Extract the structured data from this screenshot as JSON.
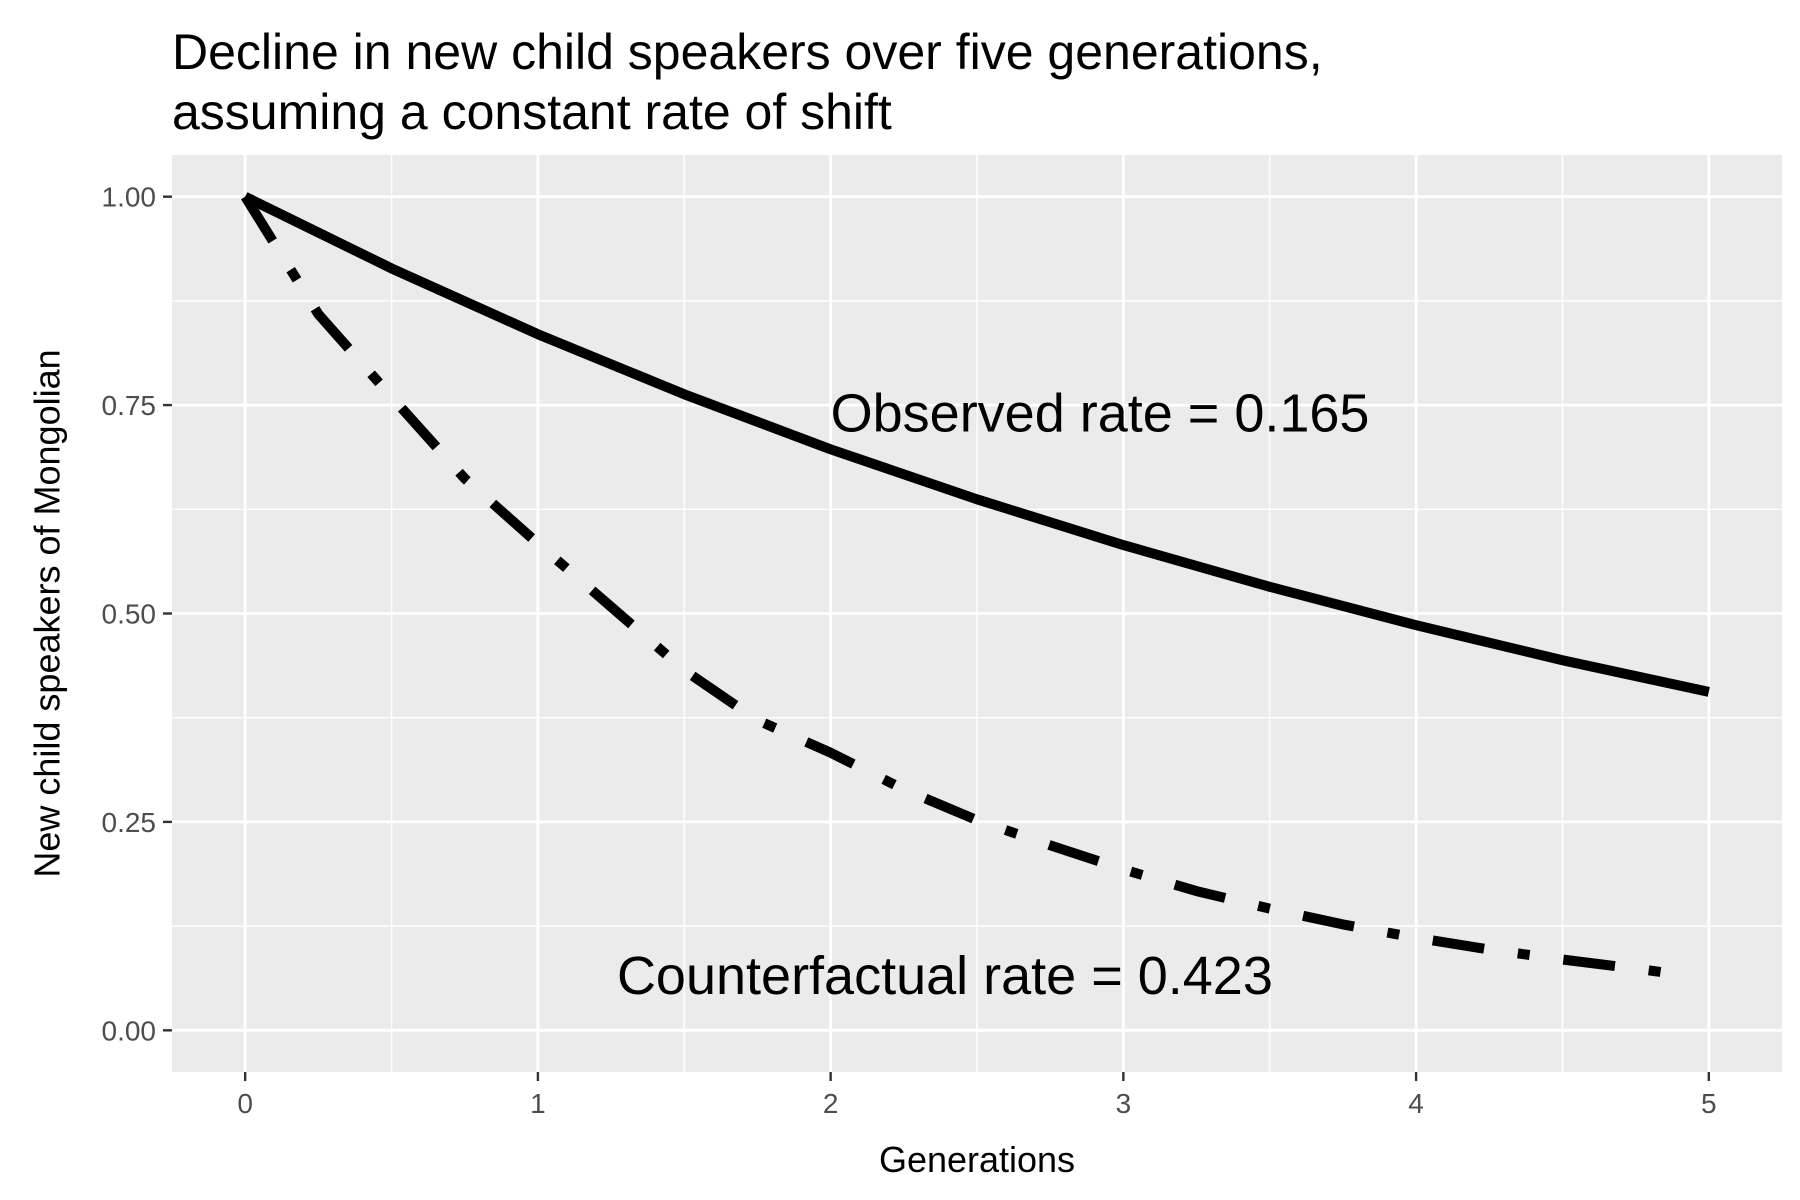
{
  "chart_data": {
    "type": "line",
    "title_lines": [
      "Decline in new child speakers over five generations,",
      "assuming a constant rate of shift"
    ],
    "xlabel": "Generations",
    "ylabel": "New child speakers of Mongolian",
    "xlim": [
      -0.25,
      5.25
    ],
    "ylim": [
      -0.05,
      1.05
    ],
    "x_ticks": [
      0,
      1,
      2,
      3,
      4,
      5
    ],
    "x_tick_labels": [
      "0",
      "1",
      "2",
      "3",
      "4",
      "5"
    ],
    "y_ticks": [
      0,
      0.25,
      0.5,
      0.75,
      1.0
    ],
    "y_tick_labels": [
      "0.00",
      "0.25",
      "0.50",
      "0.75",
      "1.00"
    ],
    "grid": true,
    "panel_background": "#ebebeb",
    "grid_color": "#ffffff",
    "series": [
      {
        "rate": 0.165,
        "line_style": "solid",
        "color": "#000000",
        "x": [
          0,
          0.5,
          1,
          1.5,
          2,
          2.5,
          3,
          3.5,
          4,
          4.5,
          5
        ],
        "y": [
          1.0,
          0.914,
          0.835,
          0.763,
          0.697,
          0.637,
          0.582,
          0.532,
          0.486,
          0.444,
          0.406
        ]
      },
      {
        "rate": 0.423,
        "line_style": "dashdot",
        "color": "#000000",
        "x": [
          0,
          0.25,
          0.5,
          0.75,
          1,
          1.25,
          1.5,
          1.75,
          2,
          2.25,
          2.5,
          2.75,
          3,
          3.25,
          3.5,
          3.75,
          4,
          4.25,
          4.5,
          4.75,
          4.9
        ],
        "y": [
          1.0,
          0.859,
          0.76,
          0.662,
          0.584,
          0.508,
          0.432,
          0.372,
          0.333,
          0.289,
          0.252,
          0.222,
          0.193,
          0.167,
          0.146,
          0.127,
          0.111,
          0.097,
          0.085,
          0.074,
          0.067
        ]
      }
    ],
    "annotations": [
      {
        "text": "Observed rate = 0.165",
        "x": 2.0,
        "y": 0.74
      },
      {
        "text": "Counterfactual rate = 0.423",
        "x": 1.27,
        "y": 0.065
      }
    ]
  }
}
